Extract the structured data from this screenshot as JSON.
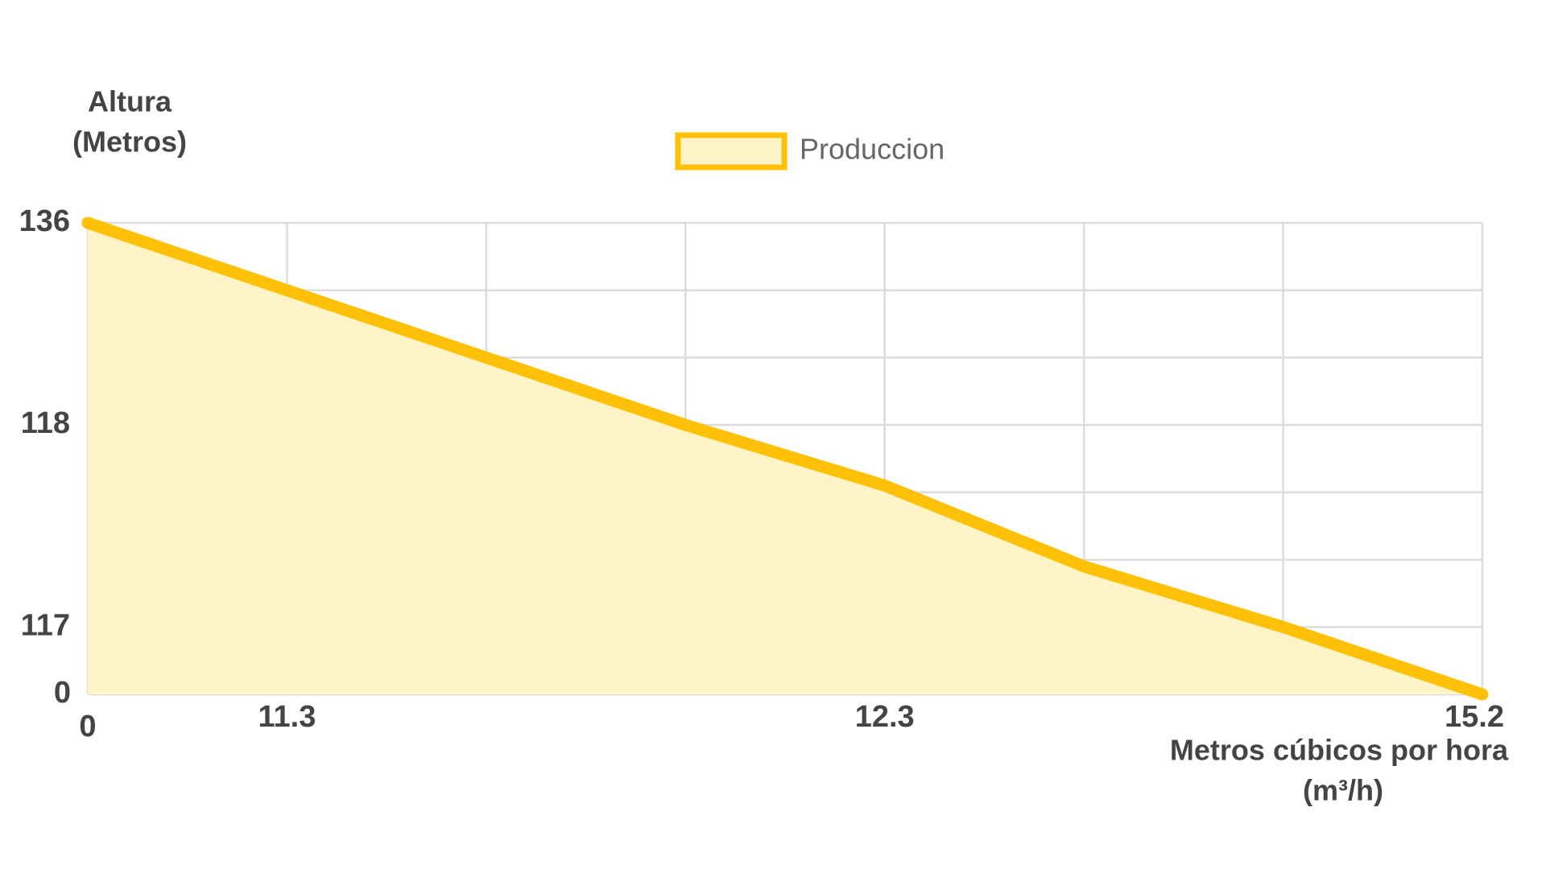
{
  "chart_data": {
    "type": "area",
    "ylabel": [
      "Altura",
      "(Metros)"
    ],
    "xlabel": [
      "Metros cúbicos por hora",
      "(m³/h)"
    ],
    "categories": [
      "0",
      "11.3",
      null,
      null,
      "12.3",
      null,
      null,
      "15.2"
    ],
    "series": [
      {
        "name": "Produccion",
        "color": "#ffc107",
        "fill": "#fff4c8",
        "values": [
          136,
          130,
          124,
          118,
          117.7,
          117.3,
          117,
          0
        ]
      }
    ],
    "ylim": [
      0,
      136
    ],
    "yticks": [
      0,
      117,
      118,
      136
    ],
    "grid": true
  }
}
